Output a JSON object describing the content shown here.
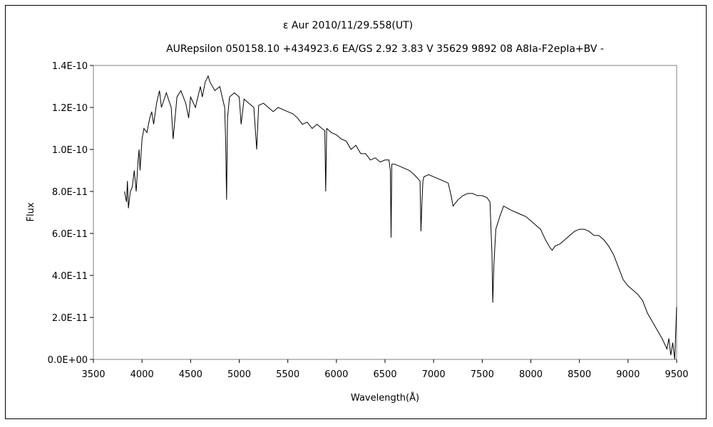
{
  "chart_data": {
    "type": "line",
    "title": "ε  Aur   2010/11/29.558(UT)",
    "subtitle": "AURepsilon 050158.10 +434923.6 EA/GS 2.92 3.83 V 35629 9892 08 A8Ia-F2epIa+BV -",
    "xlabel": "Wavelength(Å)",
    "ylabel": "Flux",
    "xlim": [
      3500,
      9500
    ],
    "ylim": [
      0,
      1.4e-10
    ],
    "xticks": [
      3500,
      4000,
      4500,
      5000,
      5500,
      6000,
      6500,
      7000,
      7500,
      8000,
      8500,
      9000,
      9500
    ],
    "yticks": [
      0,
      2e-11,
      4e-11,
      6e-11,
      8e-11,
      1e-10,
      1.2e-10,
      1.4e-10
    ],
    "xtick_labels": [
      "3500",
      "4000",
      "4500",
      "5000",
      "5500",
      "6000",
      "6500",
      "7000",
      "7500",
      "8000",
      "8500",
      "9000",
      "9500"
    ],
    "ytick_labels": [
      "0.0E+00",
      "2.0E-11",
      "4.0E-11",
      "6.0E-11",
      "8.0E-11",
      "1.0E-10",
      "1.2E-10",
      "1.4E-10"
    ],
    "grid": false,
    "legend": "none",
    "line_color": "#000000",
    "series": [
      {
        "x": [
          3820,
          3840,
          3850,
          3860,
          3880,
          3900,
          3920,
          3940,
          3960,
          3970,
          3980,
          4000,
          4020,
          4050,
          4080,
          4100,
          4120,
          4150,
          4180,
          4200,
          4250,
          4300,
          4320,
          4340,
          4360,
          4400,
          4450,
          4480,
          4500,
          4550,
          4600,
          4620,
          4650,
          4680,
          4700,
          4750,
          4800,
          4850,
          4860,
          4870,
          4880,
          4900,
          4950,
          5000,
          5020,
          5050,
          5100,
          5150,
          5180,
          5200,
          5250,
          5300,
          5350,
          5400,
          5450,
          5500,
          5550,
          5600,
          5650,
          5700,
          5750,
          5800,
          5850,
          5880,
          5890,
          5900,
          5950,
          6000,
          6050,
          6100,
          6150,
          6200,
          6250,
          6300,
          6350,
          6400,
          6450,
          6500,
          6540,
          6555,
          6562,
          6570,
          6600,
          6650,
          6700,
          6750,
          6800,
          6860,
          6870,
          6880,
          6890,
          6900,
          6950,
          7000,
          7050,
          7100,
          7150,
          7180,
          7200,
          7250,
          7300,
          7350,
          7400,
          7450,
          7500,
          7550,
          7580,
          7600,
          7608,
          7620,
          7640,
          7680,
          7720,
          7760,
          7800,
          7850,
          7900,
          7950,
          8000,
          8050,
          8100,
          8150,
          8200,
          8220,
          8250,
          8300,
          8350,
          8400,
          8450,
          8500,
          8550,
          8600,
          8650,
          8700,
          8750,
          8800,
          8850,
          8900,
          8950,
          9000,
          9050,
          9100,
          9150,
          9200,
          9250,
          9300,
          9350,
          9400,
          9420,
          9440,
          9460,
          9480,
          9500
        ],
        "y": [
          8e-11,
          7.5e-11,
          8.5e-11,
          7.2e-11,
          8e-11,
          8.2e-11,
          9e-11,
          8e-11,
          9.5e-11,
          1e-10,
          9e-11,
          1.05e-10,
          1.1e-10,
          1.08e-10,
          1.15e-10,
          1.18e-10,
          1.12e-10,
          1.22e-10,
          1.28e-10,
          1.2e-10,
          1.27e-10,
          1.2e-10,
          1.05e-10,
          1.15e-10,
          1.25e-10,
          1.28e-10,
          1.22e-10,
          1.15e-10,
          1.25e-10,
          1.2e-10,
          1.3e-10,
          1.25e-10,
          1.32e-10,
          1.35e-10,
          1.32e-10,
          1.28e-10,
          1.3e-10,
          1.2e-10,
          1.05e-10,
          7.6e-11,
          1.15e-10,
          1.25e-10,
          1.27e-10,
          1.25e-10,
          1.12e-10,
          1.24e-10,
          1.22e-10,
          1.2e-10,
          1e-10,
          1.21e-10,
          1.22e-10,
          1.2e-10,
          1.18e-10,
          1.2e-10,
          1.19e-10,
          1.18e-10,
          1.17e-10,
          1.15e-10,
          1.12e-10,
          1.13e-10,
          1.1e-10,
          1.12e-10,
          1.1e-10,
          1.09e-10,
          8e-11,
          1.1e-10,
          1.08e-10,
          1.07e-10,
          1.05e-10,
          1.04e-10,
          1e-10,
          1.02e-10,
          9.8e-11,
          9.8e-11,
          9.5e-11,
          9.6e-11,
          9.4e-11,
          9.5e-11,
          9.5e-11,
          9e-11,
          5.8e-11,
          9.3e-11,
          9.3e-11,
          9.2e-11,
          9.1e-11,
          9e-11,
          8.8e-11,
          8.5e-11,
          6.1e-11,
          7.5e-11,
          8.5e-11,
          8.7e-11,
          8.8e-11,
          8.7e-11,
          8.6e-11,
          8.5e-11,
          8.4e-11,
          7.8e-11,
          7.3e-11,
          7.6e-11,
          7.8e-11,
          7.9e-11,
          7.9e-11,
          7.8e-11,
          7.8e-11,
          7.7e-11,
          7.5e-11,
          5e-11,
          2.7e-11,
          4.5e-11,
          6.2e-11,
          6.8e-11,
          7.3e-11,
          7.2e-11,
          7.1e-11,
          7e-11,
          6.9e-11,
          6.8e-11,
          6.6e-11,
          6.4e-11,
          6.2e-11,
          5.7e-11,
          5.3e-11,
          5.2e-11,
          5.4e-11,
          5.5e-11,
          5.7e-11,
          5.9e-11,
          6.1e-11,
          6.2e-11,
          6.2e-11,
          6.1e-11,
          5.9e-11,
          5.9e-11,
          5.7e-11,
          5.4e-11,
          5e-11,
          4.4e-11,
          3.8e-11,
          3.5e-11,
          3.3e-11,
          3.1e-11,
          2.8e-11,
          2.2e-11,
          1.8e-11,
          1.4e-11,
          1e-11,
          5e-12,
          1e-11,
          2e-12,
          8e-12,
          0,
          2.5e-11
        ]
      }
    ]
  }
}
